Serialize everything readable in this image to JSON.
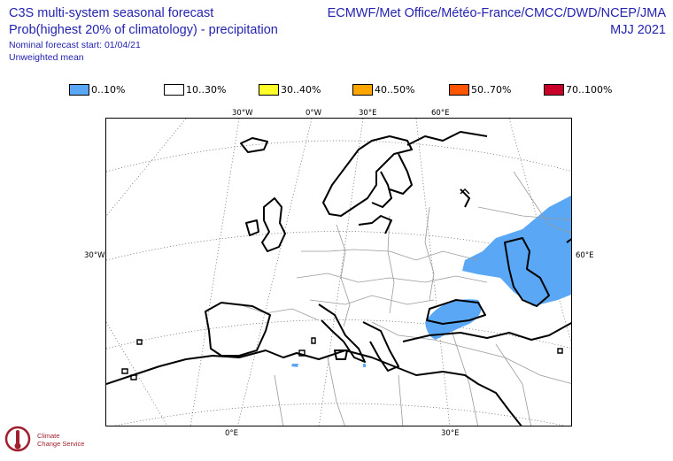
{
  "header": {
    "title_line1": "C3S multi-system seasonal forecast",
    "title_line2": "Prob(highest 20% of climatology) - precipitation",
    "forecast_start": "Nominal forecast start: 01/04/21",
    "mean_type": "Unweighted mean",
    "providers": "ECMWF/Met Office/Météo-France/CMCC/DWD/NCEP/JMA",
    "period": "MJJ 2021"
  },
  "legend": {
    "items": [
      {
        "label": "0..10%",
        "color": "#5aa8f5"
      },
      {
        "label": "10..30%",
        "color": "#ffffff"
      },
      {
        "label": "30..40%",
        "color": "#ffff2a"
      },
      {
        "label": "40..50%",
        "color": "#ffa500"
      },
      {
        "label": "50..70%",
        "color": "#ff5500"
      },
      {
        "label": "70..100%",
        "color": "#c8002a"
      }
    ]
  },
  "map": {
    "grid_labels": {
      "top_30w": "30°W",
      "top_0": "0°W",
      "top_30e": "30°E",
      "top_60e": "60°E",
      "left_30w": "30°W",
      "right_60e": "60°E",
      "bottom_0": "0°E",
      "bottom_30e": "30°E"
    },
    "shaded_category": "0..10%"
  },
  "logo": {
    "line1": "Climate",
    "line2": "Change Service"
  }
}
